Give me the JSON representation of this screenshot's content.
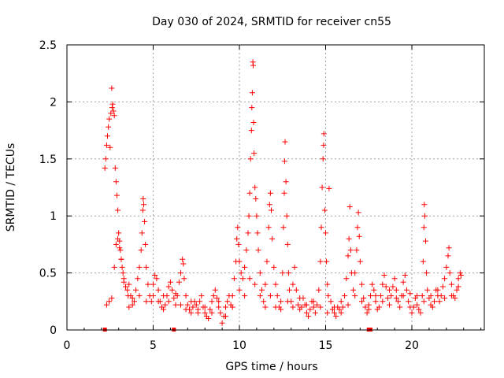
{
  "chart_data": {
    "type": "scatter",
    "title": "Day 030 of 2024, SRMTID for receiver cn55",
    "xlabel": "GPS time / hours",
    "ylabel": "SRMTID / TECUs",
    "xlim": [
      0,
      24.2
    ],
    "ylim": [
      0,
      2.5
    ],
    "x_ticks": [
      0,
      5,
      10,
      15,
      20
    ],
    "x_tick_labels": [
      "0",
      "5",
      "10",
      "15",
      "20"
    ],
    "y_ticks": [
      0,
      0.5,
      1,
      1.5,
      2,
      2.5
    ],
    "y_tick_labels": [
      "0",
      "0.5",
      "1",
      "1.5",
      "2",
      "2.5"
    ],
    "grid": true,
    "marker": "plus",
    "series_color": "#ff0000",
    "series": [
      {
        "name": "SRMTID",
        "points": [
          [
            2.2,
            1.42
          ],
          [
            2.25,
            1.5
          ],
          [
            2.3,
            1.62
          ],
          [
            2.35,
            1.7
          ],
          [
            2.4,
            1.78
          ],
          [
            2.45,
            1.85
          ],
          [
            2.5,
            1.6
          ],
          [
            2.55,
            1.9
          ],
          [
            2.6,
            2.12
          ],
          [
            2.62,
            1.95
          ],
          [
            2.65,
            1.98
          ],
          [
            2.7,
            1.92
          ],
          [
            2.75,
            1.88
          ],
          [
            2.8,
            1.42
          ],
          [
            2.85,
            1.3
          ],
          [
            2.9,
            1.18
          ],
          [
            2.95,
            1.05
          ],
          [
            3.0,
            0.85
          ],
          [
            3.05,
            0.78
          ],
          [
            3.1,
            0.7
          ],
          [
            3.15,
            0.62
          ],
          [
            3.2,
            0.55
          ],
          [
            3.25,
            0.5
          ],
          [
            3.3,
            0.42
          ],
          [
            3.4,
            0.38
          ],
          [
            3.5,
            0.35
          ],
          [
            3.6,
            0.4
          ],
          [
            3.7,
            0.3
          ],
          [
            3.8,
            0.28
          ],
          [
            3.9,
            0.25
          ],
          [
            2.3,
            0.22
          ],
          [
            2.45,
            0.25
          ],
          [
            2.6,
            0.28
          ],
          [
            2.75,
            0.55
          ],
          [
            2.85,
            0.75
          ],
          [
            2.95,
            0.8
          ],
          [
            3.05,
            0.72
          ],
          [
            3.15,
            0.62
          ],
          [
            3.3,
            0.45
          ],
          [
            3.55,
            0.3
          ],
          [
            4.0,
            0.35
          ],
          [
            4.1,
            0.45
          ],
          [
            4.2,
            0.55
          ],
          [
            4.3,
            0.7
          ],
          [
            4.35,
            0.85
          ],
          [
            4.4,
            1.05
          ],
          [
            4.42,
            1.15
          ],
          [
            4.45,
            1.1
          ],
          [
            4.5,
            0.95
          ],
          [
            4.55,
            0.75
          ],
          [
            4.6,
            0.55
          ],
          [
            4.7,
            0.4
          ],
          [
            4.8,
            0.3
          ],
          [
            4.9,
            0.25
          ],
          [
            5.0,
            0.4
          ],
          [
            5.1,
            0.48
          ],
          [
            5.2,
            0.45
          ],
          [
            5.3,
            0.35
          ],
          [
            5.4,
            0.25
          ],
          [
            5.5,
            0.2
          ],
          [
            5.6,
            0.18
          ],
          [
            5.7,
            0.22
          ],
          [
            5.8,
            0.3
          ],
          [
            5.9,
            0.38
          ],
          [
            6.0,
            0.42
          ],
          [
            6.1,
            0.35
          ],
          [
            6.2,
            0.28
          ],
          [
            6.3,
            0.22
          ],
          [
            6.4,
            0.3
          ],
          [
            6.5,
            0.42
          ],
          [
            6.6,
            0.5
          ],
          [
            6.7,
            0.62
          ],
          [
            6.75,
            0.58
          ],
          [
            6.8,
            0.45
          ],
          [
            6.9,
            0.3
          ],
          [
            7.0,
            0.22
          ],
          [
            7.1,
            0.18
          ],
          [
            7.2,
            0.15
          ],
          [
            7.3,
            0.2
          ],
          [
            7.4,
            0.25
          ],
          [
            7.5,
            0.22
          ],
          [
            7.6,
            0.18
          ],
          [
            7.7,
            0.25
          ],
          [
            7.8,
            0.3
          ],
          [
            7.9,
            0.2
          ],
          [
            8.0,
            0.15
          ],
          [
            8.1,
            0.12
          ],
          [
            8.2,
            0.1
          ],
          [
            8.3,
            0.18
          ],
          [
            8.4,
            0.25
          ],
          [
            8.5,
            0.3
          ],
          [
            8.6,
            0.35
          ],
          [
            8.7,
            0.28
          ],
          [
            8.8,
            0.2
          ],
          [
            8.9,
            0.15
          ],
          [
            9.0,
            0.06
          ],
          [
            9.1,
            0.12
          ],
          [
            9.2,
            0.2
          ],
          [
            9.3,
            0.25
          ],
          [
            9.4,
            0.3
          ],
          [
            9.5,
            0.22
          ],
          [
            9.6,
            0.3
          ],
          [
            9.7,
            0.45
          ],
          [
            9.8,
            0.6
          ],
          [
            9.85,
            0.8
          ],
          [
            9.9,
            0.9
          ],
          [
            9.95,
            0.75
          ],
          [
            10.0,
            0.6
          ],
          [
            10.1,
            0.5
          ],
          [
            10.2,
            0.45
          ],
          [
            10.3,
            0.55
          ],
          [
            10.4,
            0.7
          ],
          [
            10.5,
            0.85
          ],
          [
            10.55,
            1.0
          ],
          [
            10.6,
            1.2
          ],
          [
            10.65,
            1.5
          ],
          [
            10.7,
            1.75
          ],
          [
            10.72,
            1.95
          ],
          [
            10.75,
            2.08
          ],
          [
            10.78,
            2.35
          ],
          [
            10.8,
            2.32
          ],
          [
            10.82,
            1.82
          ],
          [
            10.85,
            1.55
          ],
          [
            10.9,
            1.25
          ],
          [
            10.95,
            1.15
          ],
          [
            11.0,
            1.0
          ],
          [
            11.05,
            0.85
          ],
          [
            11.1,
            0.7
          ],
          [
            11.2,
            0.5
          ],
          [
            11.3,
            0.35
          ],
          [
            11.4,
            0.25
          ],
          [
            11.5,
            0.4
          ],
          [
            11.6,
            0.6
          ],
          [
            11.7,
            0.9
          ],
          [
            11.75,
            1.1
          ],
          [
            11.8,
            1.2
          ],
          [
            11.85,
            1.05
          ],
          [
            11.9,
            0.8
          ],
          [
            12.0,
            0.55
          ],
          [
            12.1,
            0.4
          ],
          [
            12.2,
            0.3
          ],
          [
            12.3,
            0.2
          ],
          [
            12.4,
            0.25
          ],
          [
            12.5,
            0.5
          ],
          [
            12.55,
            0.9
          ],
          [
            12.6,
            1.2
          ],
          [
            12.62,
            1.48
          ],
          [
            12.65,
            1.65
          ],
          [
            12.7,
            1.3
          ],
          [
            12.75,
            1.0
          ],
          [
            12.8,
            0.75
          ],
          [
            12.85,
            0.5
          ],
          [
            12.9,
            0.35
          ],
          [
            13.0,
            0.25
          ],
          [
            13.1,
            0.4
          ],
          [
            13.2,
            0.55
          ],
          [
            13.3,
            0.35
          ],
          [
            13.4,
            0.22
          ],
          [
            13.5,
            0.18
          ],
          [
            13.6,
            0.2
          ],
          [
            13.7,
            0.28
          ],
          [
            13.8,
            0.22
          ],
          [
            13.9,
            0.15
          ],
          [
            14.0,
            0.12
          ],
          [
            14.1,
            0.18
          ],
          [
            14.2,
            0.25
          ],
          [
            14.3,
            0.2
          ],
          [
            14.4,
            0.15
          ],
          [
            14.5,
            0.22
          ],
          [
            14.6,
            0.35
          ],
          [
            14.7,
            0.6
          ],
          [
            14.75,
            0.9
          ],
          [
            14.8,
            1.25
          ],
          [
            14.85,
            1.5
          ],
          [
            14.88,
            1.62
          ],
          [
            14.9,
            1.72
          ],
          [
            14.95,
            1.05
          ],
          [
            15.0,
            0.85
          ],
          [
            15.05,
            0.6
          ],
          [
            15.1,
            0.4
          ],
          [
            15.15,
            0.3
          ],
          [
            15.2,
            1.24
          ],
          [
            15.3,
            0.25
          ],
          [
            15.4,
            0.18
          ],
          [
            15.5,
            0.15
          ],
          [
            15.6,
            0.12
          ],
          [
            15.7,
            0.2
          ],
          [
            15.8,
            0.18
          ],
          [
            15.9,
            0.15
          ],
          [
            16.0,
            0.2
          ],
          [
            16.1,
            0.3
          ],
          [
            16.2,
            0.45
          ],
          [
            16.3,
            0.65
          ],
          [
            16.35,
            0.8
          ],
          [
            16.4,
            1.08
          ],
          [
            16.45,
            0.7
          ],
          [
            16.5,
            0.5
          ],
          [
            16.6,
            0.35
          ],
          [
            16.7,
            0.5
          ],
          [
            16.8,
            0.7
          ],
          [
            16.85,
            0.9
          ],
          [
            16.9,
            1.03
          ],
          [
            16.95,
            0.82
          ],
          [
            17.0,
            0.6
          ],
          [
            17.1,
            0.4
          ],
          [
            17.2,
            0.28
          ],
          [
            17.3,
            0.2
          ],
          [
            17.4,
            0.15
          ],
          [
            17.5,
            0.22
          ],
          [
            17.6,
            0.3
          ],
          [
            17.7,
            0.4
          ],
          [
            17.8,
            0.35
          ],
          [
            17.9,
            0.25
          ],
          [
            18.0,
            0.18
          ],
          [
            18.1,
            0.2
          ],
          [
            18.2,
            0.3
          ],
          [
            18.3,
            0.4
          ],
          [
            18.4,
            0.48
          ],
          [
            18.5,
            0.38
          ],
          [
            18.6,
            0.28
          ],
          [
            18.7,
            0.22
          ],
          [
            18.8,
            0.3
          ],
          [
            18.9,
            0.38
          ],
          [
            19.0,
            0.45
          ],
          [
            19.1,
            0.35
          ],
          [
            19.2,
            0.25
          ],
          [
            19.3,
            0.2
          ],
          [
            19.4,
            0.3
          ],
          [
            19.5,
            0.42
          ],
          [
            19.6,
            0.48
          ],
          [
            19.7,
            0.35
          ],
          [
            19.8,
            0.25
          ],
          [
            19.9,
            0.2
          ],
          [
            20.0,
            0.15
          ],
          [
            20.1,
            0.2
          ],
          [
            20.2,
            0.28
          ],
          [
            20.3,
            0.22
          ],
          [
            20.4,
            0.18
          ],
          [
            20.5,
            0.15
          ],
          [
            20.6,
            0.3
          ],
          [
            20.65,
            0.6
          ],
          [
            20.7,
            0.9
          ],
          [
            20.72,
            1.1
          ],
          [
            20.75,
            1.0
          ],
          [
            20.8,
            0.78
          ],
          [
            20.85,
            0.5
          ],
          [
            20.9,
            0.35
          ],
          [
            21.0,
            0.28
          ],
          [
            21.1,
            0.22
          ],
          [
            21.2,
            0.2
          ],
          [
            21.3,
            0.25
          ],
          [
            21.4,
            0.35
          ],
          [
            21.5,
            0.3
          ],
          [
            21.6,
            0.25
          ],
          [
            21.7,
            0.3
          ],
          [
            21.8,
            0.38
          ],
          [
            21.9,
            0.45
          ],
          [
            22.0,
            0.55
          ],
          [
            22.1,
            0.65
          ],
          [
            22.15,
            0.72
          ],
          [
            22.2,
            0.5
          ],
          [
            22.3,
            0.4
          ],
          [
            22.4,
            0.3
          ],
          [
            22.5,
            0.28
          ],
          [
            22.6,
            0.35
          ],
          [
            22.7,
            0.45
          ],
          [
            22.8,
            0.5
          ],
          [
            22.85,
            0.48
          ],
          [
            3.6,
            0.2
          ],
          [
            3.8,
            0.22
          ],
          [
            4.2,
            0.3
          ],
          [
            4.6,
            0.25
          ],
          [
            5.0,
            0.3
          ],
          [
            5.3,
            0.25
          ],
          [
            5.6,
            0.3
          ],
          [
            5.9,
            0.25
          ],
          [
            6.3,
            0.32
          ],
          [
            6.6,
            0.22
          ],
          [
            6.9,
            0.18
          ],
          [
            7.2,
            0.25
          ],
          [
            7.6,
            0.15
          ],
          [
            8.0,
            0.2
          ],
          [
            8.4,
            0.15
          ],
          [
            8.8,
            0.25
          ],
          [
            9.2,
            0.12
          ],
          [
            9.6,
            0.2
          ],
          [
            10.0,
            0.35
          ],
          [
            10.3,
            0.3
          ],
          [
            10.6,
            0.45
          ],
          [
            10.9,
            0.4
          ],
          [
            11.2,
            0.3
          ],
          [
            11.5,
            0.2
          ],
          [
            11.8,
            0.3
          ],
          [
            12.1,
            0.2
          ],
          [
            12.4,
            0.18
          ],
          [
            12.8,
            0.25
          ],
          [
            13.1,
            0.2
          ],
          [
            13.5,
            0.28
          ],
          [
            13.9,
            0.22
          ],
          [
            14.3,
            0.25
          ],
          [
            14.7,
            0.2
          ],
          [
            15.1,
            0.15
          ],
          [
            15.5,
            0.2
          ],
          [
            15.9,
            0.25
          ],
          [
            16.3,
            0.22
          ],
          [
            16.7,
            0.3
          ],
          [
            17.1,
            0.25
          ],
          [
            17.5,
            0.18
          ],
          [
            17.9,
            0.3
          ],
          [
            18.3,
            0.25
          ],
          [
            18.7,
            0.35
          ],
          [
            19.1,
            0.28
          ],
          [
            19.5,
            0.3
          ],
          [
            19.9,
            0.32
          ],
          [
            20.3,
            0.3
          ],
          [
            20.7,
            0.25
          ],
          [
            21.1,
            0.3
          ],
          [
            21.5,
            0.35
          ],
          [
            21.9,
            0.28
          ],
          [
            22.3,
            0.3
          ],
          [
            22.7,
            0.38
          ]
        ]
      }
    ],
    "gap_markers_x": [
      2.2,
      6.2,
      17.5,
      17.6
    ]
  }
}
